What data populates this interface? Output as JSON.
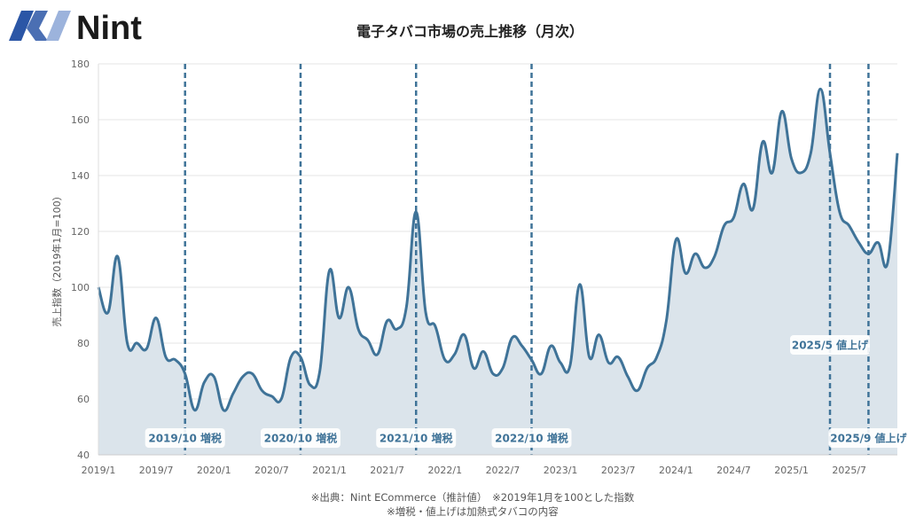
{
  "logo": {
    "text": "Nint"
  },
  "chart_data": {
    "type": "line",
    "title": "電子タバコ市場の売上推移（月次）",
    "ylabel": "売上指数（2019年1月=100）",
    "xlabel": "",
    "ylim": [
      40,
      180
    ],
    "yticks": [
      40,
      60,
      80,
      100,
      120,
      140,
      160,
      180
    ],
    "grid": true,
    "fill": true,
    "start": "2019/1",
    "xtick_labels": [
      "2019/1",
      "2019/7",
      "2020/1",
      "2020/7",
      "2021/1",
      "2021/7",
      "2022/1",
      "2022/7",
      "2023/1",
      "2023/7",
      "2024/1",
      "2024/7",
      "2025/1",
      "2025/7"
    ],
    "values": [
      100,
      91,
      111,
      80,
      80,
      78,
      89,
      75,
      74,
      69,
      56,
      66,
      68,
      56,
      62,
      68,
      69,
      63,
      61,
      60,
      75,
      75,
      65,
      70,
      106,
      89,
      100,
      85,
      81,
      76,
      88,
      85,
      93,
      127,
      91,
      86,
      74,
      76,
      83,
      71,
      77,
      69,
      71,
      82,
      79,
      74,
      69,
      79,
      73,
      72,
      101,
      75,
      83,
      73,
      75,
      68,
      63,
      71,
      75,
      88,
      117,
      105,
      112,
      107,
      111,
      122,
      125,
      137,
      128,
      152,
      141,
      163,
      146,
      141,
      148,
      171,
      148,
      127,
      122,
      116,
      112,
      116,
      109,
      148
    ],
    "annotations": [
      {
        "month_index": 9,
        "label": "2019/10 増税",
        "level": "low"
      },
      {
        "month_index": 21,
        "label": "2020/10 増税",
        "level": "low"
      },
      {
        "month_index": 33,
        "label": "2021/10 増税",
        "level": "low"
      },
      {
        "month_index": 45,
        "label": "2022/10 増税",
        "level": "low"
      },
      {
        "month_index": 76,
        "label": "2025/5 値上げ",
        "level": "high"
      },
      {
        "month_index": 80,
        "label": "2025/9 値上げ",
        "level": "low"
      }
    ],
    "colors": {
      "line": "#3f7398",
      "fill": "#dbe4eb",
      "grid": "#e6e6e6"
    }
  },
  "footer": {
    "line1": "※出典：Nint ECommerce（推計値）　※2019年1月を100とした指数",
    "line2": "※増税・値上げは加熱式タバコの内容"
  }
}
